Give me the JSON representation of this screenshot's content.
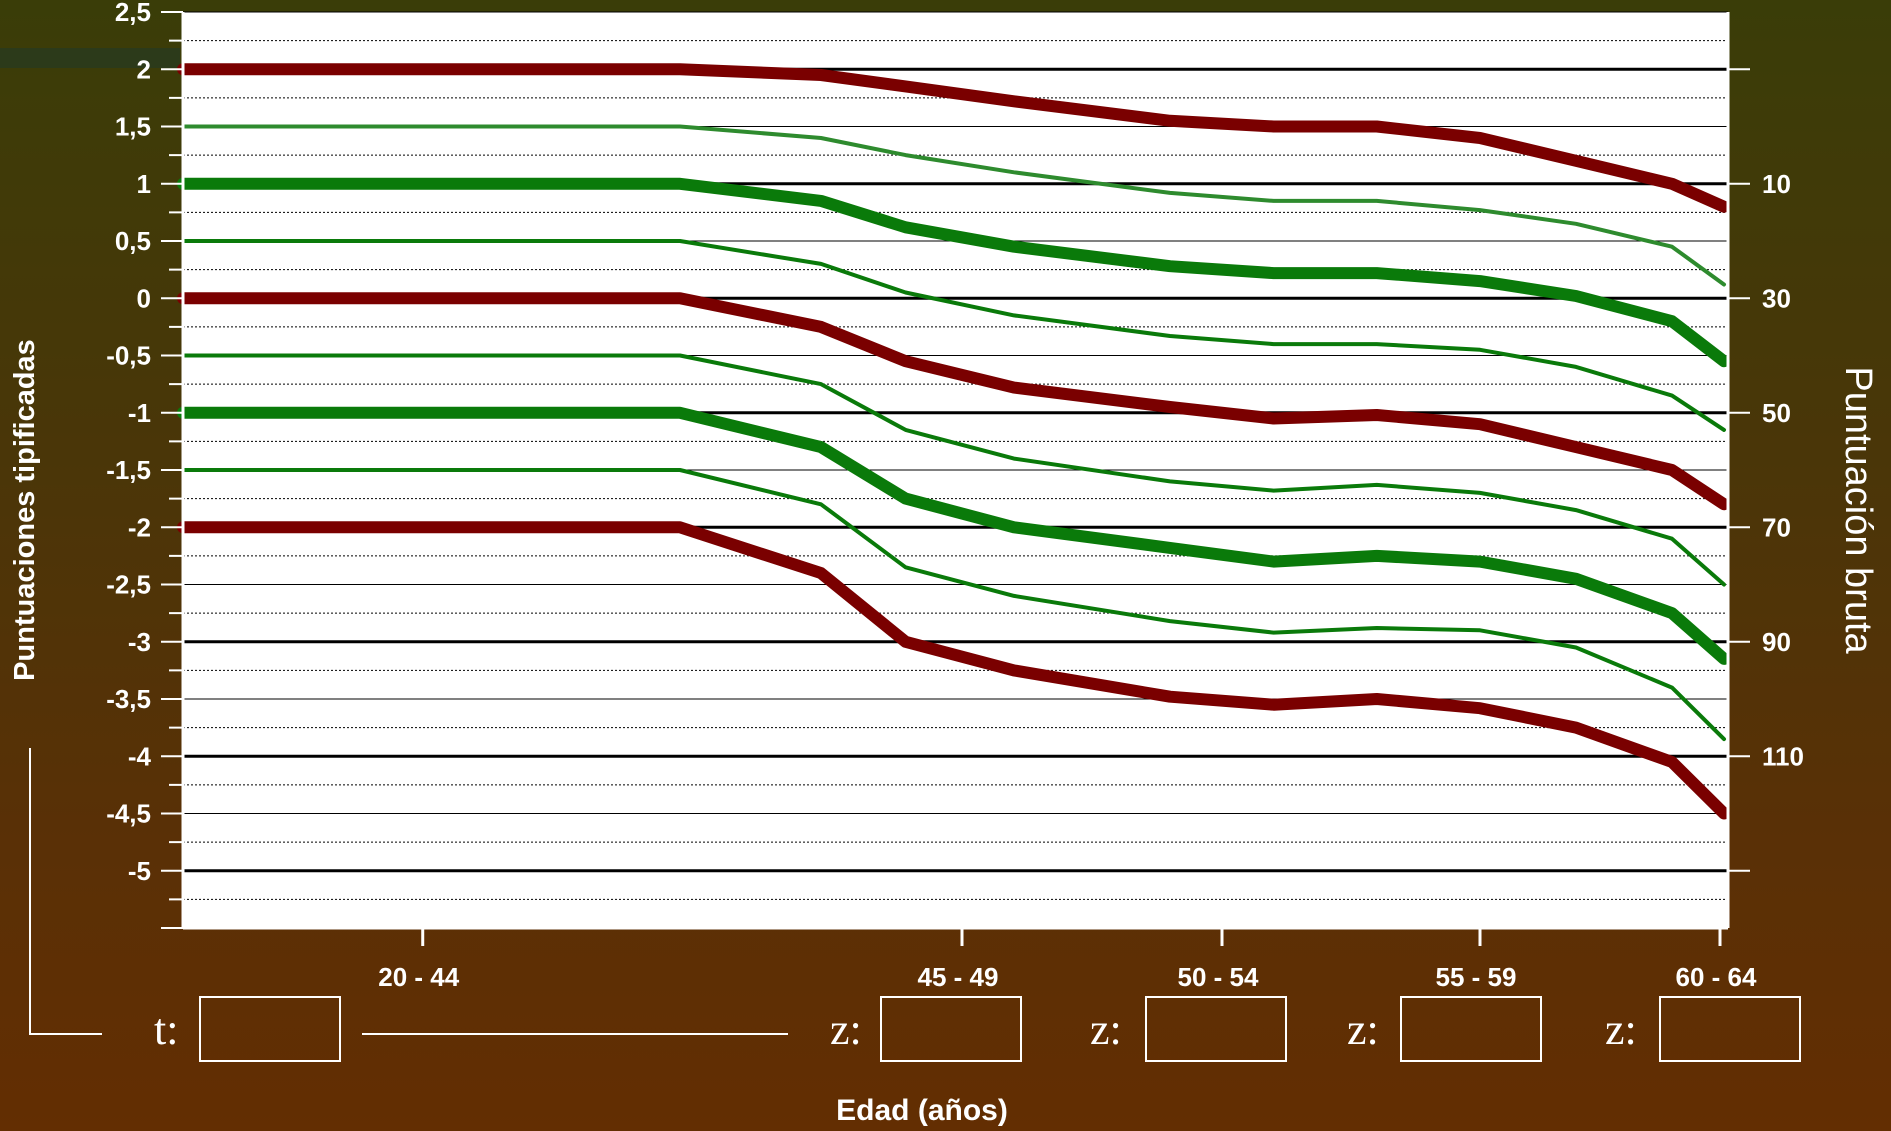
{
  "chart_data": {
    "type": "line",
    "xlabel": "Edad (años)",
    "ylabel": "Puntuaciones tipificadas",
    "y2label": "Puntuación bruta",
    "ylim": [
      -5.5,
      2.5
    ],
    "categories": [
      "20-44",
      "45-49",
      "50-54",
      "55-59",
      "60-64"
    ],
    "y_ticks": [
      "2,5",
      "2",
      "1,5",
      "1",
      "0,5",
      "0",
      "-0,5",
      "-1",
      "-1,5",
      "-2",
      "-2,5",
      "-3",
      "-3,5",
      "-4",
      "-4,5",
      "-5"
    ],
    "y2_ticks": [
      "10",
      "30",
      "50",
      "70",
      "90",
      "110"
    ],
    "grid": true,
    "series": [
      {
        "color": "#7a0000",
        "style": "thick",
        "points": [
          [
            20,
            2
          ],
          [
            37,
            2
          ],
          [
            42,
            1.95
          ],
          [
            45,
            1.85
          ],
          [
            48,
            1.72
          ],
          [
            51,
            1.55
          ],
          [
            53,
            1.5
          ],
          [
            55,
            1.5
          ],
          [
            57,
            1.4
          ],
          [
            59,
            1.2
          ],
          [
            61,
            1.0
          ],
          [
            63,
            0.8
          ]
        ]
      },
      {
        "color": "#2e8b2e",
        "style": "thin",
        "points": [
          [
            20,
            1.5
          ],
          [
            37,
            1.5
          ],
          [
            42,
            1.4
          ],
          [
            45,
            1.25
          ],
          [
            48,
            1.1
          ],
          [
            51,
            0.92
          ],
          [
            53,
            0.85
          ],
          [
            55,
            0.85
          ],
          [
            57,
            0.77
          ],
          [
            59,
            0.65
          ],
          [
            61,
            0.45
          ],
          [
            63,
            0.12
          ]
        ]
      },
      {
        "color": "#0a7a0a",
        "style": "thick",
        "points": [
          [
            20,
            1
          ],
          [
            37,
            1
          ],
          [
            42,
            0.85
          ],
          [
            45,
            0.62
          ],
          [
            48,
            0.45
          ],
          [
            51,
            0.28
          ],
          [
            53,
            0.22
          ],
          [
            55,
            0.22
          ],
          [
            57,
            0.15
          ],
          [
            59,
            0.02
          ],
          [
            61,
            -0.2
          ],
          [
            63,
            -0.55
          ]
        ]
      },
      {
        "color": "#0a7a0a",
        "style": "thin",
        "points": [
          [
            20,
            0.5
          ],
          [
            37,
            0.5
          ],
          [
            42,
            0.3
          ],
          [
            45,
            0.05
          ],
          [
            48,
            -0.15
          ],
          [
            51,
            -0.33
          ],
          [
            53,
            -0.4
          ],
          [
            55,
            -0.4
          ],
          [
            57,
            -0.45
          ],
          [
            59,
            -0.6
          ],
          [
            61,
            -0.85
          ],
          [
            63,
            -1.15
          ]
        ]
      },
      {
        "color": "#7a0000",
        "style": "thick",
        "points": [
          [
            20,
            0
          ],
          [
            37,
            0
          ],
          [
            42,
            -0.25
          ],
          [
            45,
            -0.55
          ],
          [
            48,
            -0.78
          ],
          [
            51,
            -0.95
          ],
          [
            53,
            -1.05
          ],
          [
            55,
            -1.02
          ],
          [
            57,
            -1.1
          ],
          [
            59,
            -1.3
          ],
          [
            61,
            -1.5
          ],
          [
            63,
            -1.8
          ]
        ]
      },
      {
        "color": "#0a7a0a",
        "style": "thin",
        "points": [
          [
            20,
            -0.5
          ],
          [
            37,
            -0.5
          ],
          [
            42,
            -0.75
          ],
          [
            45,
            -1.15
          ],
          [
            48,
            -1.4
          ],
          [
            51,
            -1.6
          ],
          [
            53,
            -1.68
          ],
          [
            55,
            -1.63
          ],
          [
            57,
            -1.7
          ],
          [
            59,
            -1.85
          ],
          [
            61,
            -2.1
          ],
          [
            63,
            -2.5
          ]
        ]
      },
      {
        "color": "#0a7a0a",
        "style": "thick",
        "points": [
          [
            20,
            -1
          ],
          [
            37,
            -1
          ],
          [
            42,
            -1.3
          ],
          [
            45,
            -1.75
          ],
          [
            48,
            -2.0
          ],
          [
            51,
            -2.18
          ],
          [
            53,
            -2.3
          ],
          [
            55,
            -2.25
          ],
          [
            57,
            -2.3
          ],
          [
            59,
            -2.45
          ],
          [
            61,
            -2.75
          ],
          [
            63,
            -3.15
          ]
        ]
      },
      {
        "color": "#0a7a0a",
        "style": "thin",
        "points": [
          [
            20,
            -1.5
          ],
          [
            37,
            -1.5
          ],
          [
            42,
            -1.8
          ],
          [
            45,
            -2.35
          ],
          [
            48,
            -2.6
          ],
          [
            51,
            -2.82
          ],
          [
            53,
            -2.92
          ],
          [
            55,
            -2.88
          ],
          [
            57,
            -2.9
          ],
          [
            59,
            -3.05
          ],
          [
            61,
            -3.4
          ],
          [
            63,
            -3.85
          ]
        ]
      },
      {
        "color": "#7a0000",
        "style": "thick",
        "points": [
          [
            20,
            -2
          ],
          [
            37,
            -2
          ],
          [
            42,
            -2.4
          ],
          [
            45,
            -3.0
          ],
          [
            48,
            -3.25
          ],
          [
            51,
            -3.48
          ],
          [
            53,
            -3.55
          ],
          [
            55,
            -3.5
          ],
          [
            57,
            -3.58
          ],
          [
            59,
            -3.75
          ],
          [
            61,
            -4.05
          ],
          [
            63,
            -4.5
          ]
        ]
      }
    ]
  },
  "inputs": {
    "t_label": "t:",
    "z_label": "z:"
  }
}
